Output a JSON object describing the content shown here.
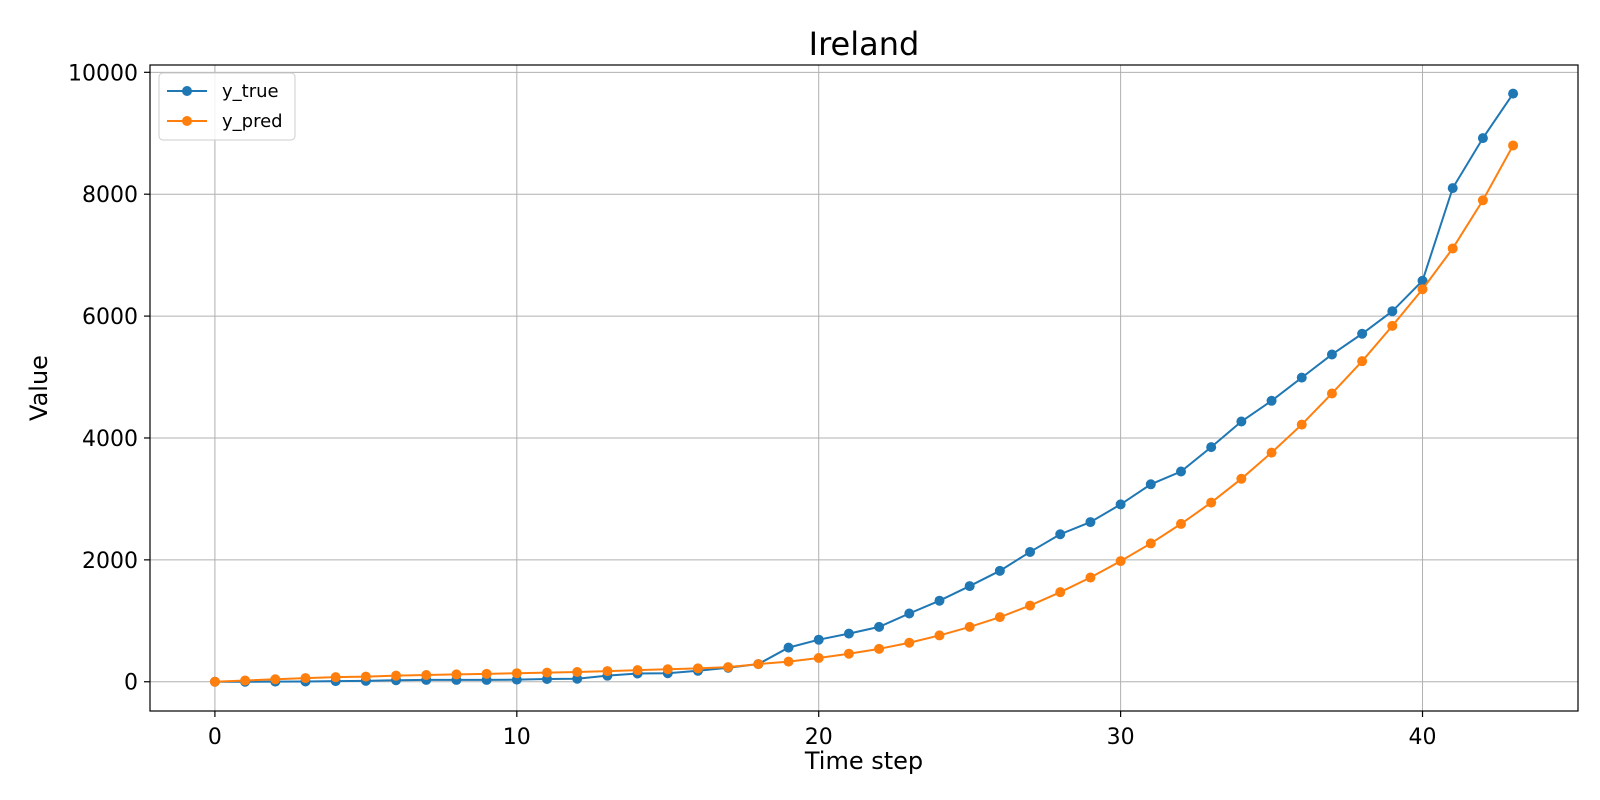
{
  "chart_data": {
    "type": "line",
    "title": "Ireland",
    "xlabel": "Time step",
    "ylabel": "Value",
    "xlim": [
      -2.15,
      45.15
    ],
    "ylim": [
      -480,
      10120
    ],
    "xticks": [
      0,
      10,
      20,
      30,
      40
    ],
    "yticks": [
      0,
      2000,
      4000,
      6000,
      8000,
      10000
    ],
    "xtick_labels": [
      "0",
      "10",
      "20",
      "30",
      "40"
    ],
    "ytick_labels": [
      "0",
      "2000",
      "4000",
      "6000",
      "8000",
      "10000"
    ],
    "grid": true,
    "legend_position": "upper-left",
    "x": [
      0,
      1,
      2,
      3,
      4,
      5,
      6,
      7,
      8,
      9,
      10,
      11,
      12,
      13,
      14,
      15,
      16,
      17,
      18,
      19,
      20,
      21,
      22,
      23,
      24,
      25,
      26,
      27,
      28,
      29,
      30,
      31,
      32,
      33,
      34,
      35,
      36,
      37,
      38,
      39,
      40,
      41,
      42,
      43
    ],
    "series": [
      {
        "name": "y_true",
        "color": "#1f77b4",
        "values": [
          0,
          0,
          2,
          5,
          10,
          15,
          25,
          30,
          30,
          30,
          35,
          45,
          50,
          100,
          135,
          140,
          180,
          230,
          290,
          560,
          690,
          790,
          900,
          1120,
          1330,
          1570,
          1820,
          2130,
          2420,
          2620,
          2910,
          3240,
          3450,
          3850,
          4270,
          4610,
          4990,
          5370,
          5710,
          6080,
          6580,
          8100,
          8920,
          9650
        ]
      },
      {
        "name": "y_pred",
        "color": "#ff7f0e",
        "values": [
          0,
          20,
          40,
          60,
          75,
          85,
          100,
          110,
          120,
          130,
          140,
          150,
          160,
          175,
          190,
          205,
          220,
          240,
          290,
          330,
          390,
          460,
          540,
          640,
          760,
          900,
          1060,
          1250,
          1470,
          1710,
          1980,
          2270,
          2590,
          2940,
          3330,
          3760,
          4220,
          4730,
          5260,
          5840,
          6440,
          7110,
          7900,
          8800
        ]
      }
    ]
  }
}
